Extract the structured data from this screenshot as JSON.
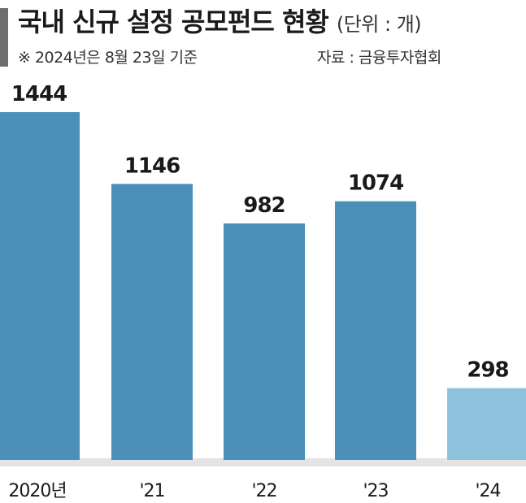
{
  "header": {
    "title": "국내 신규 설정 공모펀드 현황",
    "unit": "(단위 : 개)",
    "note": "※ 2024년은 8월 23일 기준",
    "source": "자료 : 금융투자협회"
  },
  "colors": {
    "bar": "#4a90b8",
    "bar_highlight": "#8ec2dc",
    "baseline_shade": "#e4e4e4",
    "accent": "#6d6e70"
  },
  "chart_data": {
    "type": "bar",
    "categories": [
      "2020년",
      "'21",
      "'22",
      "'23",
      "'24"
    ],
    "values": [
      1444,
      1146,
      982,
      1074,
      298
    ],
    "data_labels": [
      "1444",
      "1146",
      "982",
      "1074",
      "298"
    ],
    "highlight_index": 4,
    "ylim": [
      0,
      1444
    ],
    "grid": false,
    "legend": "none"
  }
}
